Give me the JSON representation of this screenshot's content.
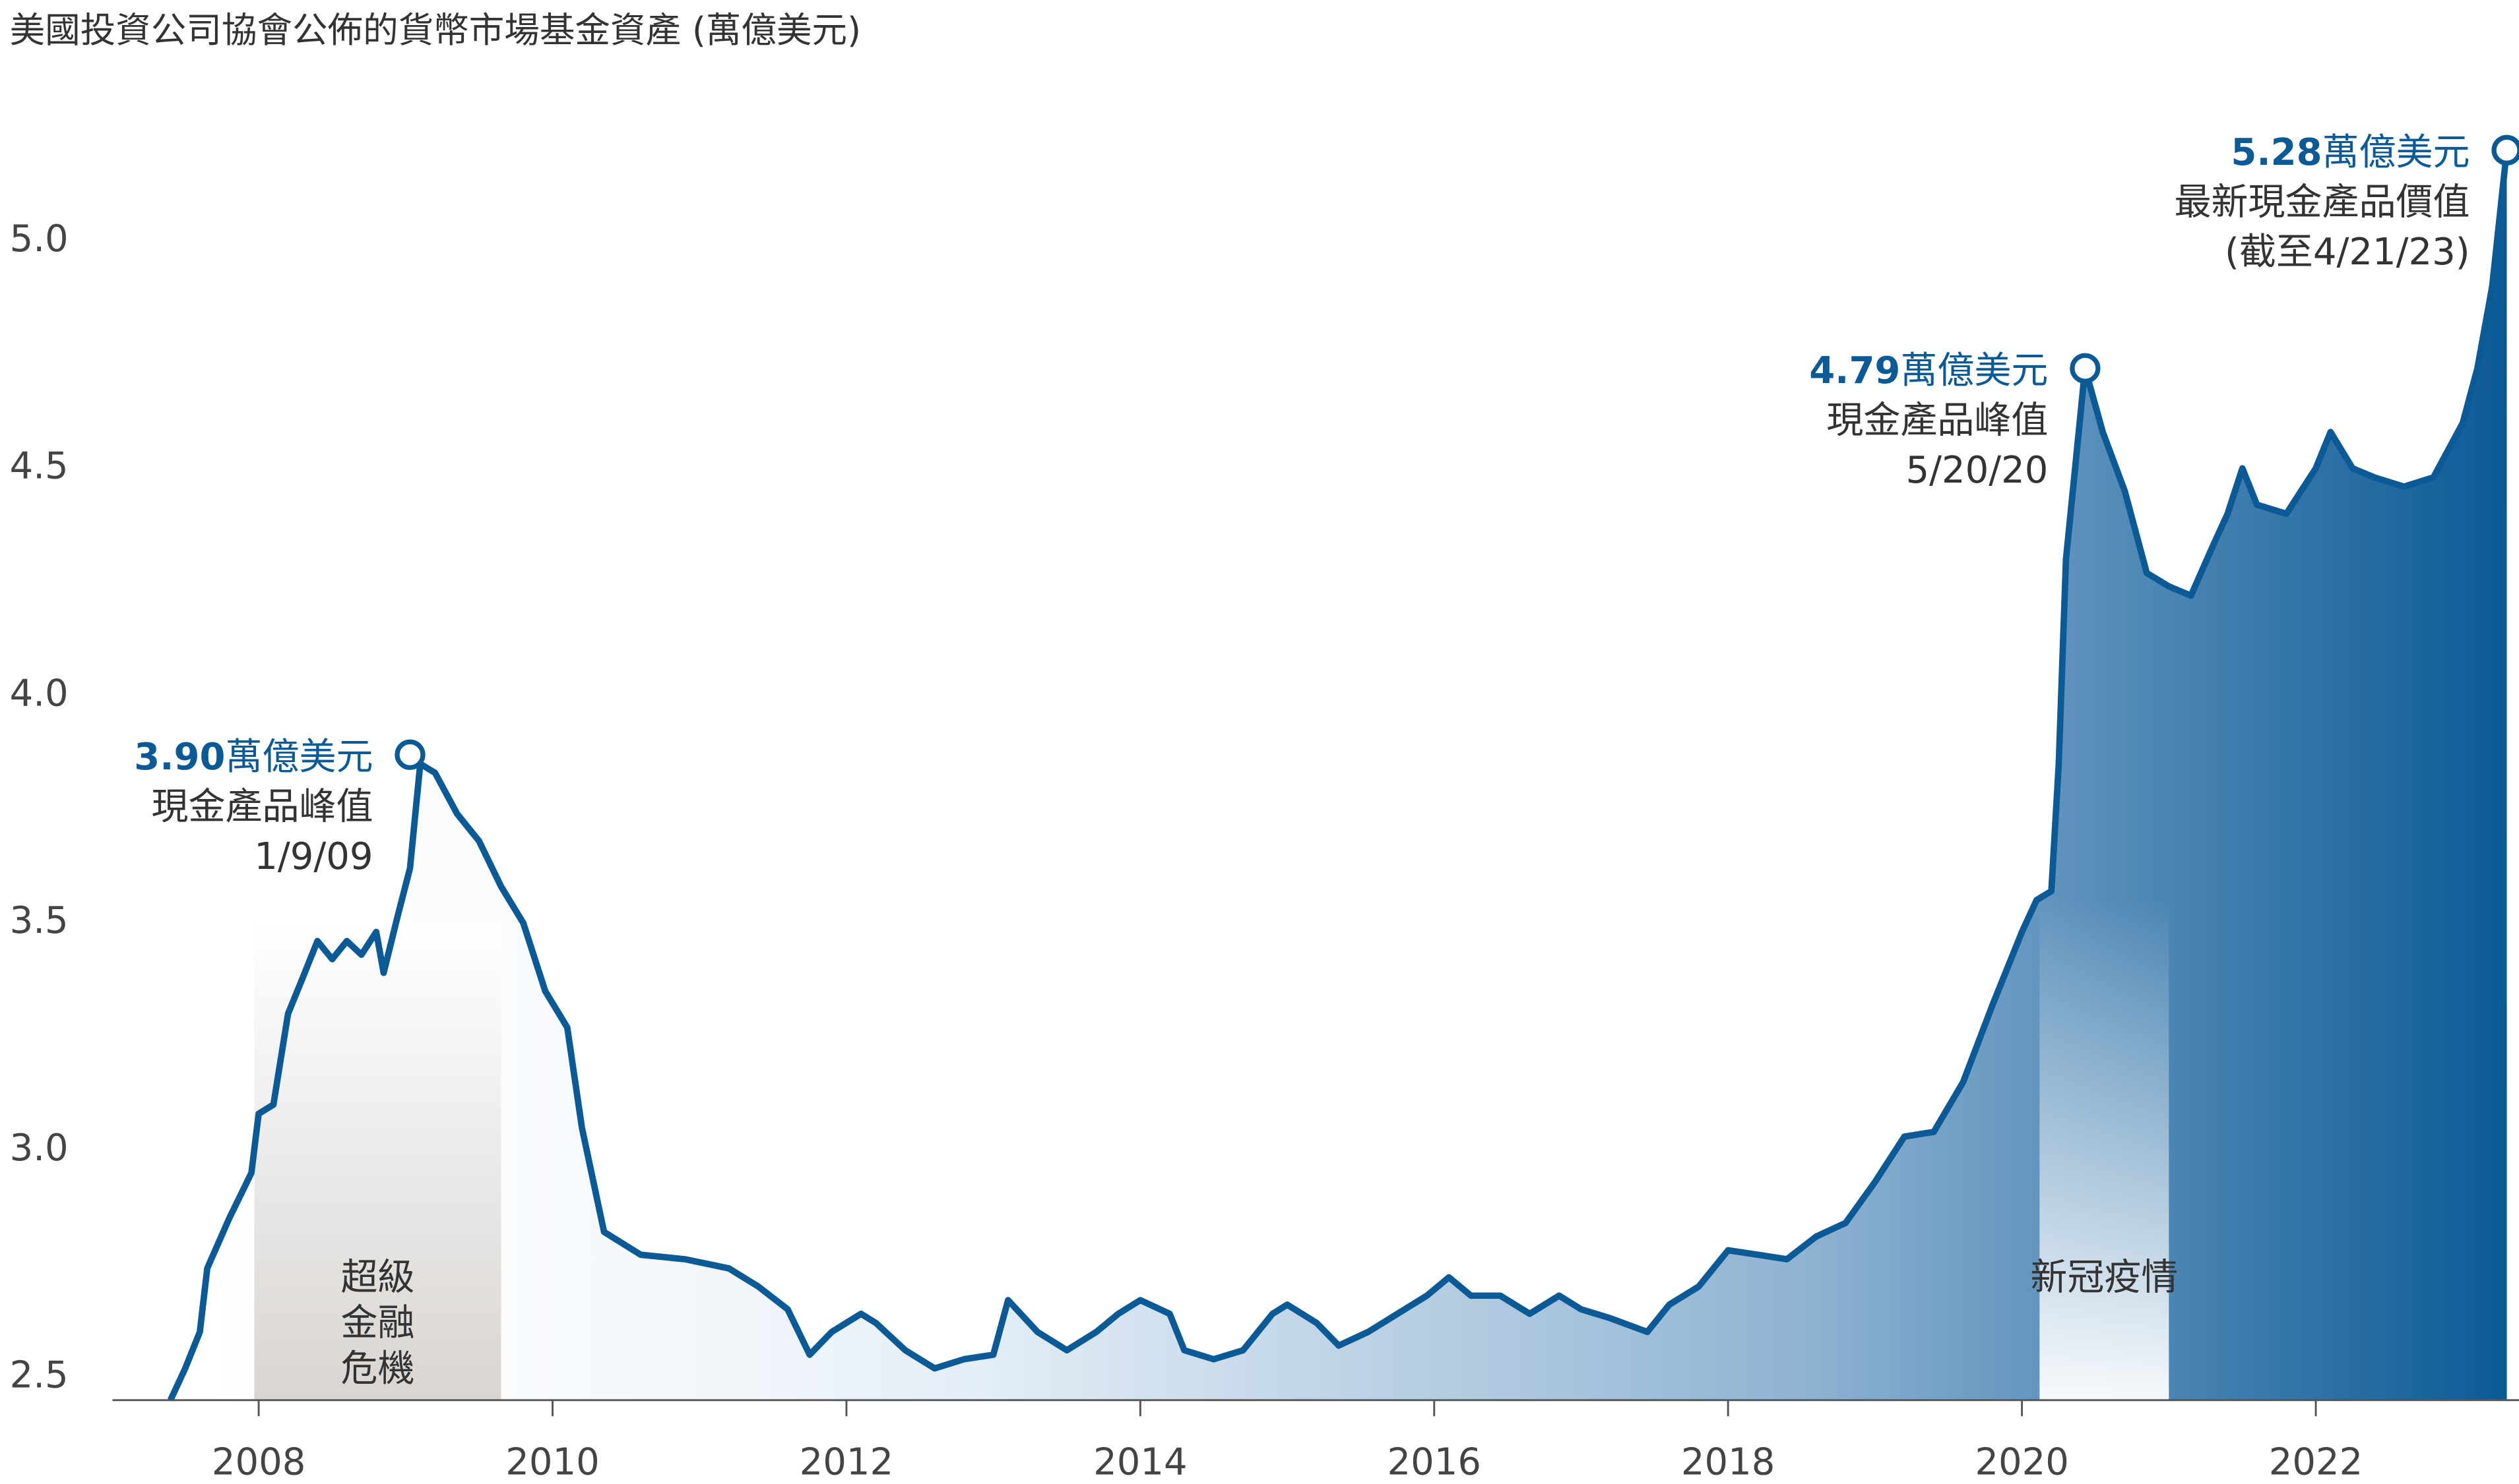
{
  "chart_data": {
    "type": "line",
    "title": "美國投資公司協會公佈的貨幣市場基金資產 (萬億美元)",
    "xlim": [
      2007.3,
      2023.35
    ],
    "ylim": [
      2.45,
      5.3
    ],
    "xticks": [
      2008,
      2010,
      2012,
      2014,
      2016,
      2018,
      2020,
      2022
    ],
    "yticks": [
      2.5,
      {
        "value": 3,
        "label": "3.0"
      },
      3.5,
      {
        "value": 4,
        "label": "4.0"
      },
      4.5,
      {
        "value": 5,
        "label": "5.0"
      }
    ],
    "series": [
      {
        "color": "#0b5a96",
        "x": [
          2007.4,
          2007.5,
          2007.6,
          2007.65,
          2007.8,
          2007.95,
          2008.0,
          2008.1,
          2008.2,
          2008.3,
          2008.4,
          2008.5,
          2008.6,
          2008.7,
          2008.8,
          2008.85,
          2008.95,
          2009.03,
          2009.1,
          2009.2,
          2009.35,
          2009.5,
          2009.65,
          2009.8,
          2009.95,
          2010.1,
          2010.2,
          2010.35,
          2010.6,
          2010.9,
          2011.2,
          2011.4,
          2011.6,
          2011.75,
          2011.9,
          2012.1,
          2012.2,
          2012.4,
          2012.6,
          2012.8,
          2013.0,
          2013.1,
          2013.3,
          2013.5,
          2013.7,
          2013.85,
          2014.0,
          2014.2,
          2014.3,
          2014.5,
          2014.7,
          2014.9,
          2015.0,
          2015.2,
          2015.35,
          2015.55,
          2015.75,
          2015.95,
          2016.1,
          2016.25,
          2016.45,
          2016.65,
          2016.85,
          2017.0,
          2017.2,
          2017.45,
          2017.6,
          2017.8,
          2018.0,
          2018.2,
          2018.4,
          2018.6,
          2018.8,
          2019.0,
          2019.2,
          2019.4,
          2019.6,
          2019.8,
          2020.0,
          2020.1,
          2020.2,
          2020.25,
          2020.3,
          2020.43,
          2020.55,
          2020.7,
          2020.85,
          2021.0,
          2021.15,
          2021.3,
          2021.4,
          2021.5,
          2021.6,
          2021.8,
          2022.0,
          2022.1,
          2022.25,
          2022.4,
          2022.6,
          2022.8,
          2023.0,
          2023.1,
          2023.2,
          2023.3
        ],
        "values": [
          2.45,
          2.52,
          2.6,
          2.74,
          2.85,
          2.95,
          3.08,
          3.1,
          3.3,
          3.38,
          3.46,
          3.42,
          3.46,
          3.43,
          3.48,
          3.39,
          3.52,
          3.62,
          3.85,
          3.83,
          3.74,
          3.68,
          3.58,
          3.5,
          3.35,
          3.27,
          3.05,
          2.82,
          2.77,
          2.76,
          2.74,
          2.7,
          2.65,
          2.55,
          2.6,
          2.64,
          2.62,
          2.56,
          2.52,
          2.54,
          2.55,
          2.67,
          2.6,
          2.56,
          2.6,
          2.64,
          2.67,
          2.64,
          2.56,
          2.54,
          2.56,
          2.64,
          2.66,
          2.62,
          2.57,
          2.6,
          2.64,
          2.68,
          2.72,
          2.68,
          2.68,
          2.64,
          2.68,
          2.65,
          2.63,
          2.6,
          2.66,
          2.7,
          2.78,
          2.77,
          2.76,
          2.81,
          2.84,
          2.93,
          3.03,
          3.04,
          3.15,
          3.32,
          3.48,
          3.55,
          3.57,
          3.85,
          4.3,
          4.72,
          4.58,
          4.45,
          4.27,
          4.24,
          4.22,
          4.33,
          4.4,
          4.5,
          4.42,
          4.4,
          4.5,
          4.58,
          4.5,
          4.48,
          4.46,
          4.48,
          4.6,
          4.72,
          4.9,
          5.2
        ]
      }
    ],
    "shaded_regions": [
      {
        "start": 2007.97,
        "end": 2009.65,
        "lines": [
          "超級",
          "金融",
          "危機"
        ]
      },
      {
        "start": 2020.12,
        "end": 2021.0,
        "lines": [
          "新冠疫情"
        ]
      }
    ],
    "annotations": [
      {
        "x": 2009.03,
        "y": 3.87,
        "amount": "3.90",
        "unit": "萬億美元",
        "lines": [
          "現金產品峰值",
          "1/9/09"
        ]
      },
      {
        "x": 2020.43,
        "y": 4.72,
        "amount": "4.79",
        "unit": "萬億美元",
        "lines": [
          "現金產品峰值",
          "5/20/20"
        ]
      },
      {
        "x": 2023.3,
        "y": 5.2,
        "amount": "5.28",
        "unit": "萬億美元",
        "lines": [
          "最新現金產品價值",
          "(截至4/21/23)"
        ]
      }
    ]
  }
}
